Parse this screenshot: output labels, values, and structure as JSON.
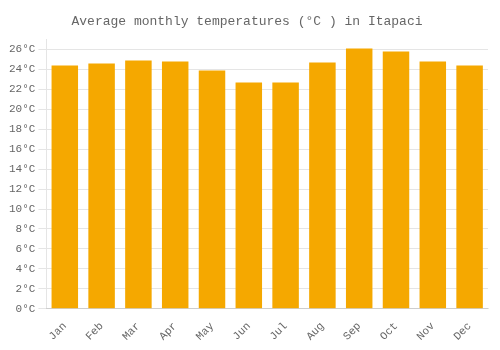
{
  "chart_data": {
    "type": "bar",
    "title": "Average monthly temperatures (°C ) in Itapaci",
    "categories": [
      "Jan",
      "Feb",
      "Mar",
      "Apr",
      "May",
      "Jun",
      "Jul",
      "Aug",
      "Sep",
      "Oct",
      "Nov",
      "Dec"
    ],
    "values": [
      24.4,
      24.6,
      24.9,
      24.8,
      23.9,
      22.7,
      22.7,
      24.7,
      26.1,
      25.8,
      24.8,
      24.4
    ],
    "color": "#F5A800",
    "ylim": [
      0,
      27
    ],
    "yticks": [
      {
        "value": 0,
        "label": "0°C"
      },
      {
        "value": 2,
        "label": "2°C"
      },
      {
        "value": 4,
        "label": "4°C"
      },
      {
        "value": 6,
        "label": "6°C"
      },
      {
        "value": 8,
        "label": "8°C"
      },
      {
        "value": 10,
        "label": "10°C"
      },
      {
        "value": 12,
        "label": "12°C"
      },
      {
        "value": 14,
        "label": "14°C"
      },
      {
        "value": 16,
        "label": "16°C"
      },
      {
        "value": 18,
        "label": "18°C"
      },
      {
        "value": 20,
        "label": "20°C"
      },
      {
        "value": 22,
        "label": "22°C"
      },
      {
        "value": 24,
        "label": "24°C"
      },
      {
        "value": 26,
        "label": "26°C"
      }
    ],
    "grid": true
  }
}
